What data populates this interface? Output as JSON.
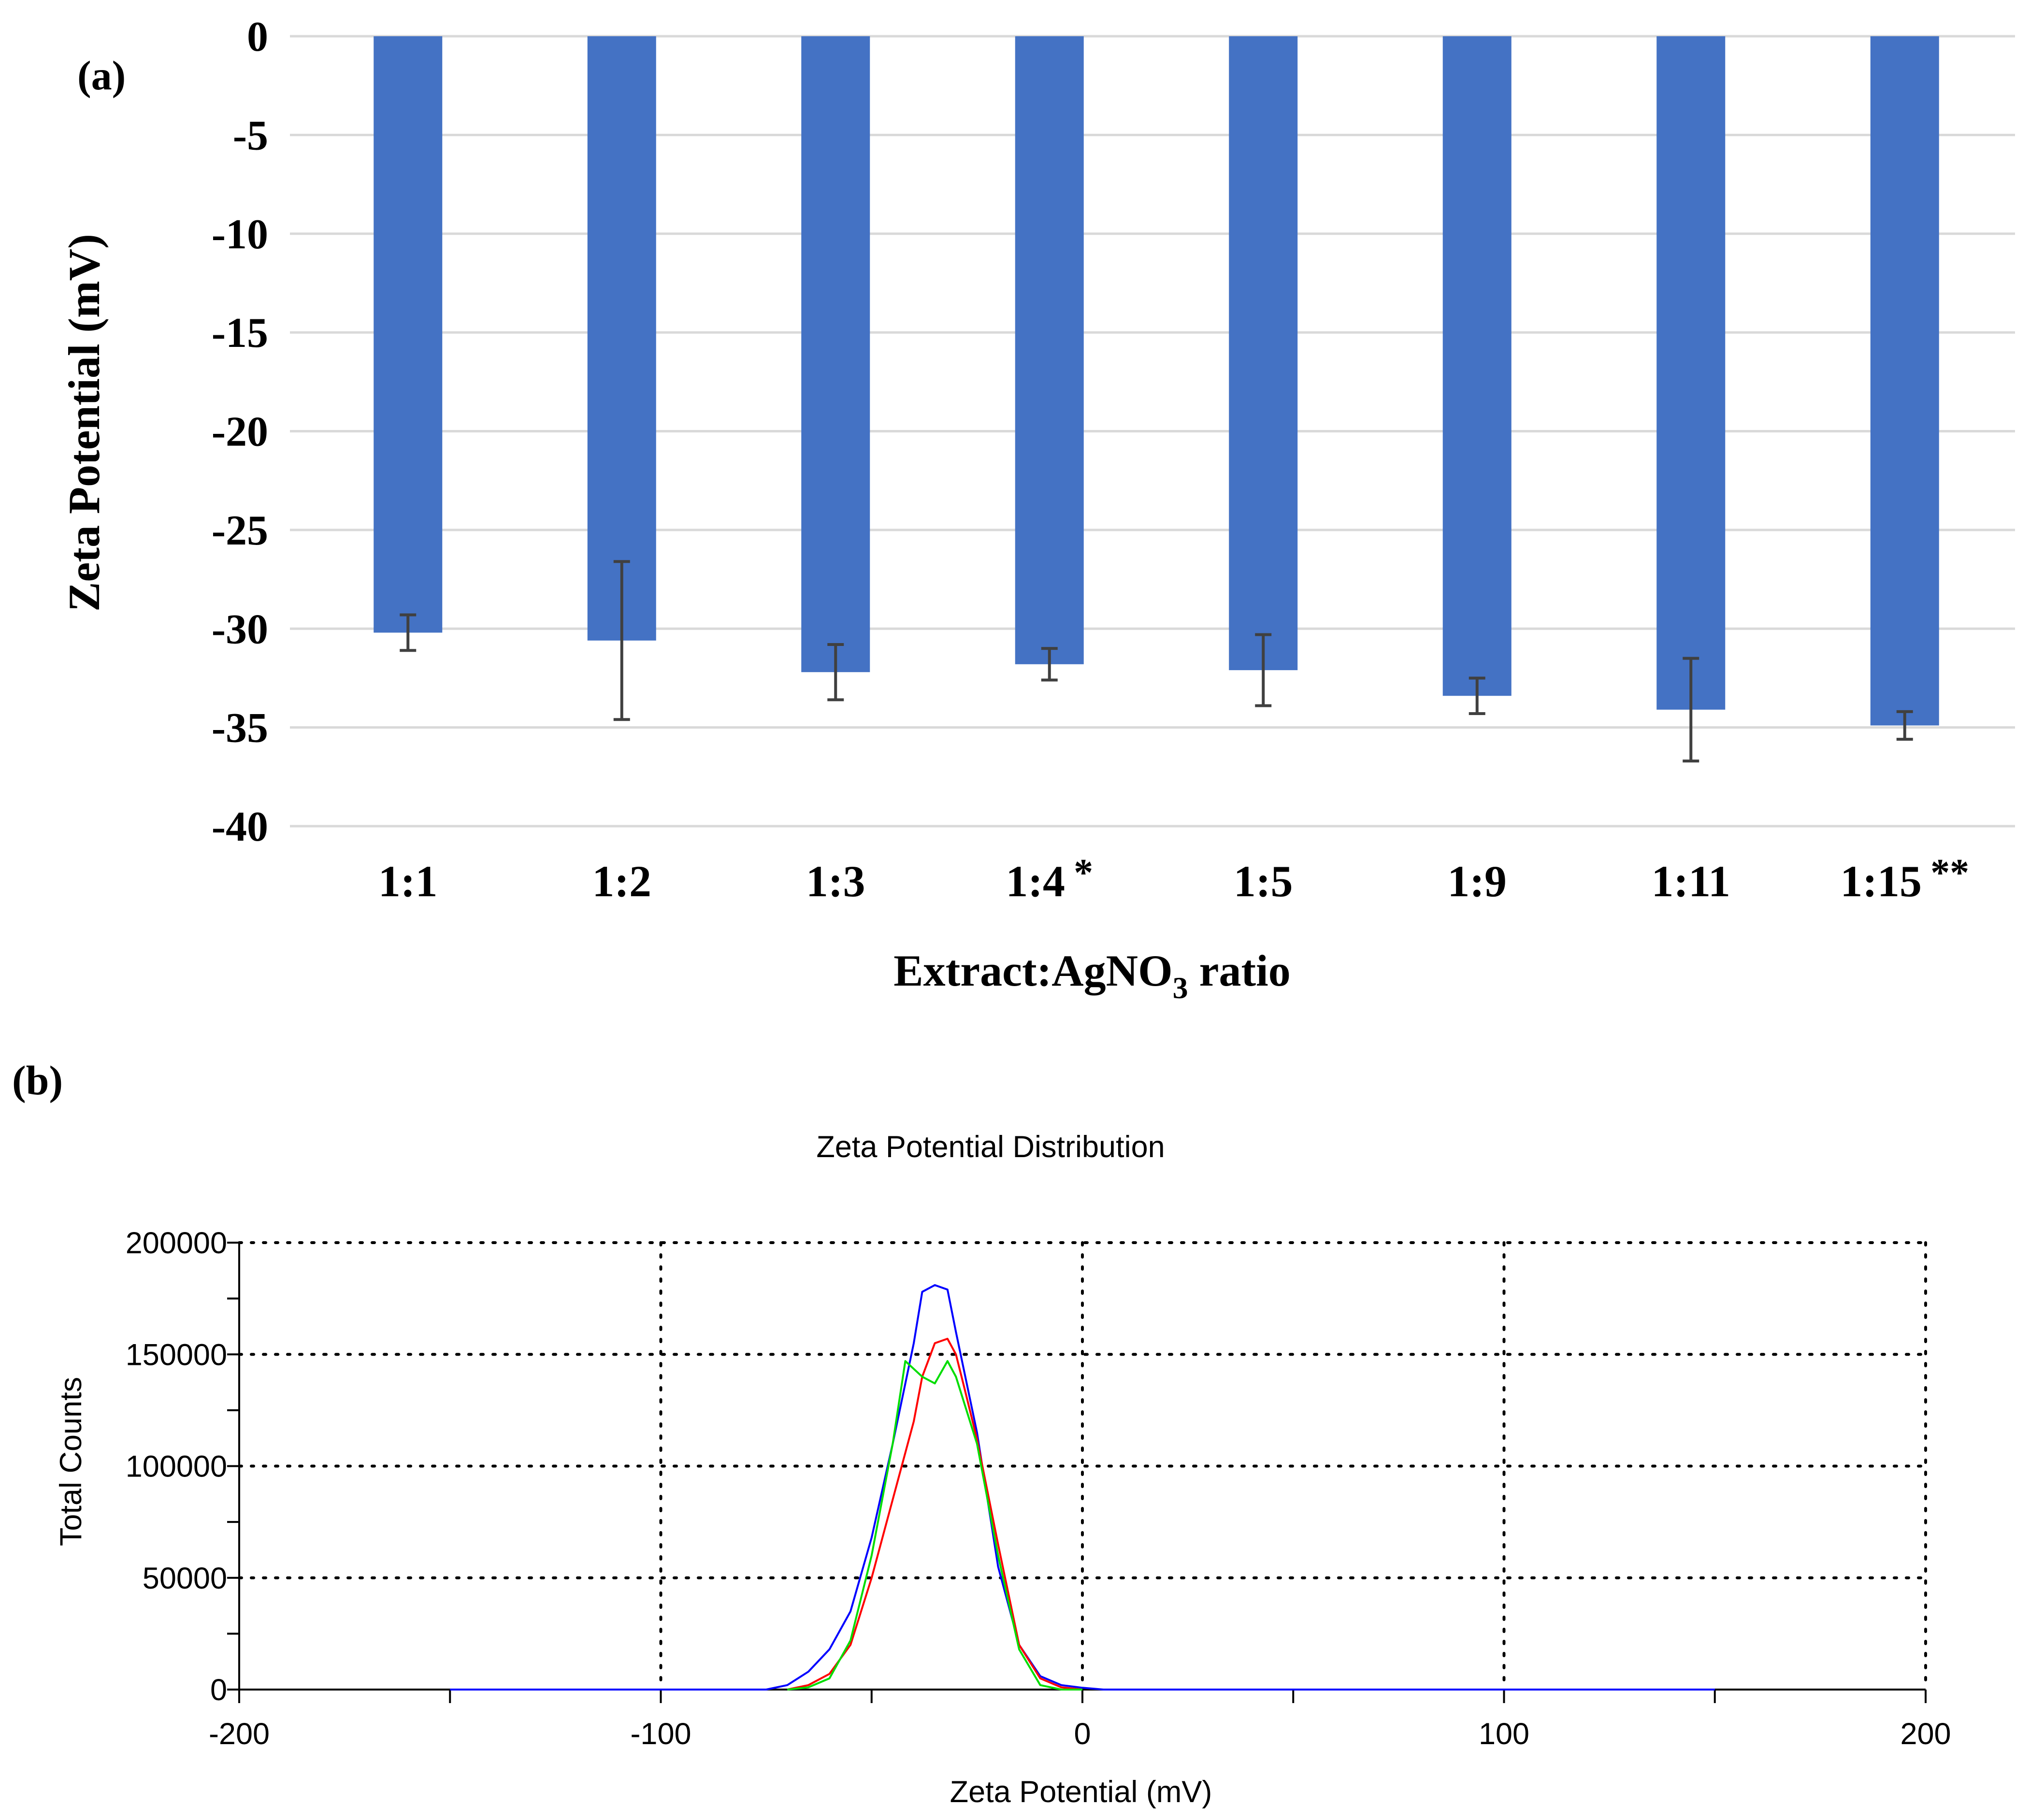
{
  "chart_data": [
    {
      "panel_label": "(a)",
      "type": "bar",
      "title": "",
      "xlabel": "Extract:AgNO",
      "xlabel_subscript": "3",
      "xlabel_suffix": " ratio",
      "ylabel": "Zeta Potential (mV)",
      "categories": [
        "1:1",
        "1:2",
        "1:3",
        "1:4",
        "1:5",
        "1:9",
        "1:11",
        "1:15"
      ],
      "category_markers": [
        "",
        "",
        "",
        "*",
        "",
        "",
        "",
        "**"
      ],
      "values": [
        -30.2,
        -30.6,
        -32.2,
        -31.8,
        -32.1,
        -33.4,
        -34.1,
        -34.9
      ],
      "errors": [
        0.9,
        4.0,
        1.4,
        0.8,
        1.8,
        0.9,
        2.6,
        0.7
      ],
      "ylim": [
        -40,
        0
      ],
      "yticks": [
        0,
        -5,
        -10,
        -15,
        -20,
        -25,
        -30,
        -35,
        -40
      ],
      "grid": true,
      "bar_color": "#4472C4",
      "error_color": "#404040",
      "grid_color": "#D9D9D9"
    },
    {
      "panel_label": "(b)",
      "type": "line",
      "title": "Zeta Potential Distribution",
      "xlabel": "Zeta Potential (mV)",
      "ylabel": "Total Counts",
      "xlim": [
        -200,
        200
      ],
      "ylim": [
        0,
        200000
      ],
      "xticks": [
        -200,
        -100,
        0,
        100,
        200
      ],
      "yticks": [
        0,
        50000,
        100000,
        150000,
        200000
      ],
      "grid": "dotted",
      "series": [
        {
          "color": "#0000FF",
          "x": [
            -150,
            -75,
            -70,
            -65,
            -60,
            -55,
            -50,
            -45,
            -40,
            -38,
            -35,
            -32,
            -30,
            -25,
            -20,
            -15,
            -10,
            -5,
            0,
            5,
            150
          ],
          "y": [
            0,
            0,
            2000,
            8000,
            18000,
            35000,
            68000,
            110000,
            155000,
            178000,
            181000,
            179000,
            160000,
            115000,
            55000,
            20000,
            6000,
            2000,
            800,
            0,
            0
          ]
        },
        {
          "color": "#FF0000",
          "x": [
            -70,
            -65,
            -60,
            -55,
            -50,
            -45,
            -40,
            -38,
            -35,
            -32,
            -30,
            -28,
            -25,
            -20,
            -15,
            -10,
            -5,
            0
          ],
          "y": [
            0,
            2000,
            7000,
            20000,
            50000,
            85000,
            120000,
            140000,
            155000,
            157000,
            150000,
            135000,
            112000,
            65000,
            20000,
            5000,
            1000,
            0
          ]
        },
        {
          "color": "#00DD00",
          "x": [
            -70,
            -65,
            -60,
            -55,
            -50,
            -45,
            -42,
            -38,
            -35,
            -32,
            -30,
            -25,
            -20,
            -15,
            -10,
            -5,
            0
          ],
          "y": [
            0,
            1000,
            5000,
            22000,
            60000,
            110000,
            147000,
            140000,
            137000,
            147000,
            140000,
            110000,
            60000,
            18000,
            2000,
            0,
            0
          ]
        }
      ]
    }
  ]
}
